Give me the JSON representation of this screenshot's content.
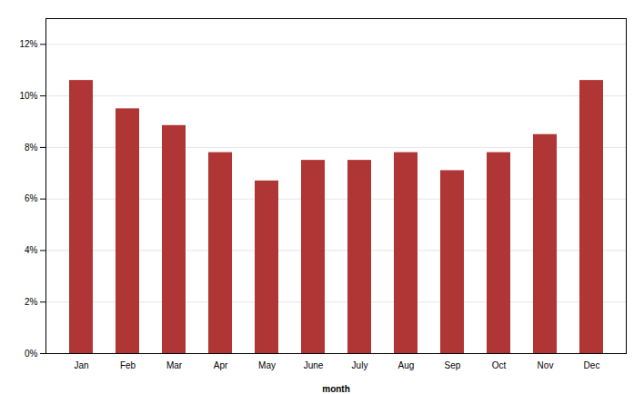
{
  "chart_data": {
    "type": "bar",
    "categories": [
      "Jan",
      "Feb",
      "Mar",
      "Apr",
      "May",
      "June",
      "July",
      "Aug",
      "Sep",
      "Oct",
      "Nov",
      "Dec"
    ],
    "values": [
      10.6,
      9.5,
      8.85,
      7.8,
      6.7,
      7.5,
      7.5,
      7.8,
      7.1,
      7.8,
      8.5,
      10.6
    ],
    "color": "#b03535",
    "xlabel": "month",
    "ylim": [
      0,
      13.0
    ],
    "yticks": [
      {
        "value": 0,
        "label": "0%"
      },
      {
        "value": 2,
        "label": "2%"
      },
      {
        "value": 4,
        "label": "4%"
      },
      {
        "value": 6,
        "label": "6%"
      },
      {
        "value": 8,
        "label": "8%"
      },
      {
        "value": 10,
        "label": "10%"
      },
      {
        "value": 12,
        "label": "12%"
      }
    ],
    "grid": true
  }
}
